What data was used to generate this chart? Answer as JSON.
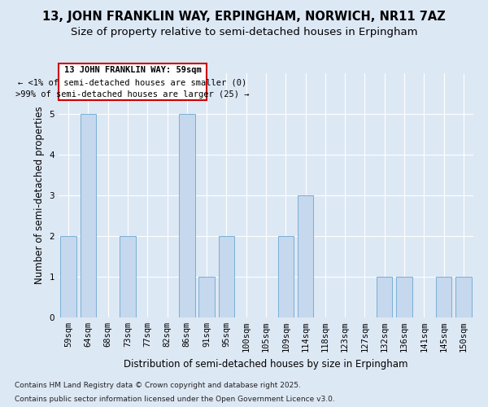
{
  "title_line1": "13, JOHN FRANKLIN WAY, ERPINGHAM, NORWICH, NR11 7AZ",
  "title_line2": "Size of property relative to semi-detached houses in Erpingham",
  "xlabel": "Distribution of semi-detached houses by size in Erpingham",
  "ylabel": "Number of semi-detached properties",
  "categories": [
    "59sqm",
    "64sqm",
    "68sqm",
    "73sqm",
    "77sqm",
    "82sqm",
    "86sqm",
    "91sqm",
    "95sqm",
    "100sqm",
    "105sqm",
    "109sqm",
    "114sqm",
    "118sqm",
    "123sqm",
    "127sqm",
    "132sqm",
    "136sqm",
    "141sqm",
    "145sqm",
    "150sqm"
  ],
  "values": [
    2,
    5,
    0,
    2,
    0,
    0,
    5,
    1,
    2,
    0,
    0,
    2,
    3,
    0,
    0,
    0,
    1,
    1,
    0,
    1,
    1
  ],
  "bar_color": "#c5d8ed",
  "bar_edge_color": "#7aafd4",
  "annotation_title": "13 JOHN FRANKLIN WAY: 59sqm",
  "annotation_line1": "← <1% of semi-detached houses are smaller (0)",
  "annotation_line2": ">99% of semi-detached houses are larger (25) →",
  "annotation_box_color": "#ffffff",
  "annotation_border_color": "#cc0000",
  "ylim": [
    0,
    6
  ],
  "yticks": [
    0,
    1,
    2,
    3,
    4,
    5,
    6
  ],
  "footer_line1": "Contains HM Land Registry data © Crown copyright and database right 2025.",
  "footer_line2": "Contains public sector information licensed under the Open Government Licence v3.0.",
  "bg_color": "#dde8f5",
  "plot_bg_color": "#dde8f5",
  "title_fontsize": 10.5,
  "subtitle_fontsize": 9.5,
  "tick_fontsize": 7.5,
  "ylabel_fontsize": 8.5,
  "xlabel_fontsize": 8.5,
  "footer_fontsize": 6.5,
  "ann_fontsize": 7.5
}
